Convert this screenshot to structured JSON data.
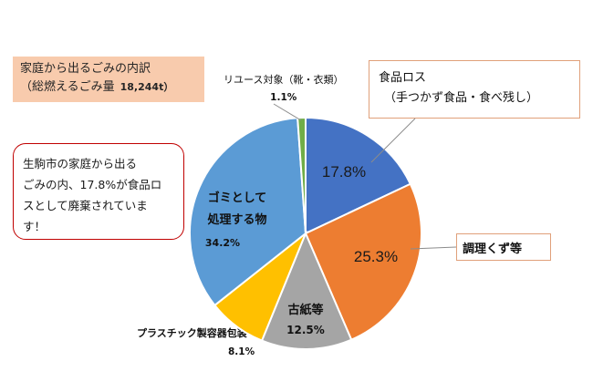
{
  "title": {
    "line1": "家庭から出るごみの内訳",
    "line2": "（総燃えるごみ量",
    "amount": "18,244t）"
  },
  "note": {
    "lines": [
      "生駒市の家庭から出る",
      "ごみの内、17.8%が食品ロ",
      "スとして廃棄されていま",
      "す！"
    ]
  },
  "callouts": {
    "food_loss_line1": "食品ロス",
    "food_loss_line2": "（手つかず食品・食べ残し）",
    "cooking_waste": "調理くず等"
  },
  "labels": {
    "reuse_name": "リユース対象（靴・衣類）",
    "plastic_name": "プラスチック製容器包装",
    "paper_name": "古紙等",
    "garbage_line1": "ゴミとして",
    "garbage_line2": "処理する物"
  },
  "colors": {
    "food_loss": "#4472c4",
    "cooking": "#ed7d31",
    "paper": "#a5a5a5",
    "plastic": "#ffc000",
    "garbage": "#5b9bd5",
    "reuse": "#70ad47"
  },
  "chart_data": {
    "type": "pie",
    "start_angle_deg": 0,
    "direction": "clockwise",
    "slices": [
      {
        "label": "食品ロス（手つかず食品・食べ残し）",
        "value": 17.8,
        "display": "17.8%",
        "color": "#4472c4"
      },
      {
        "label": "調理くず等",
        "value": 25.3,
        "display": "25.3%",
        "color": "#ed7d31"
      },
      {
        "label": "古紙等",
        "value": 12.5,
        "display": "12.5%",
        "color": "#a5a5a5"
      },
      {
        "label": "プラスチック製容器包装",
        "value": 8.1,
        "display": "8.1%",
        "color": "#ffc000"
      },
      {
        "label": "ゴミとして処理する物",
        "value": 34.2,
        "display": "34.2%",
        "color": "#5b9bd5"
      },
      {
        "label": "リユース対象（靴・衣類）",
        "value": 1.1,
        "display": "1.1%",
        "color": "#70ad47"
      }
    ]
  }
}
